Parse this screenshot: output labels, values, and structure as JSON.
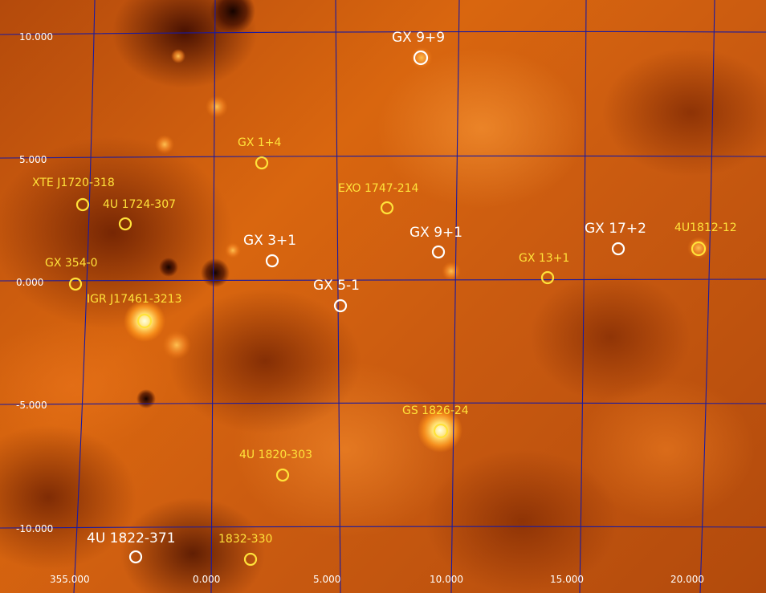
{
  "map": {
    "y_axis_labels": [
      "10.000",
      "5.000",
      "0.000",
      "-5.000",
      "-10.000"
    ],
    "x_axis_labels": [
      "355.000",
      "0.000",
      "5.000",
      "10.000",
      "15.000",
      "20.000"
    ],
    "grid_color": "#1a1aa0",
    "colors": {
      "circle_yellow": "#ffe23a",
      "circle_white": "#ffffff",
      "label_yellow": "#ffe23a",
      "label_white": "#ffffff"
    }
  },
  "sources": [
    {
      "name": "GX 9+9",
      "style": "white"
    },
    {
      "name": "GX 1+4",
      "style": "yellow"
    },
    {
      "name": "XTE J1720-318",
      "style": "yellow"
    },
    {
      "name": "4U 1724-307",
      "style": "yellow"
    },
    {
      "name": "EXO 1747-214",
      "style": "yellow"
    },
    {
      "name": "GX 3+1",
      "style": "white"
    },
    {
      "name": "GX 9+1",
      "style": "white"
    },
    {
      "name": "GX 17+2",
      "style": "white"
    },
    {
      "name": "4U1812-12",
      "style": "yellow"
    },
    {
      "name": "GX 13+1",
      "style": "yellow"
    },
    {
      "name": "GX 354-0",
      "style": "yellow"
    },
    {
      "name": "GX 5-1",
      "style": "white"
    },
    {
      "name": "IGR J17461-3213",
      "style": "yellow"
    },
    {
      "name": "GS 1826-24",
      "style": "yellow"
    },
    {
      "name": "4U 1820-303",
      "style": "yellow"
    },
    {
      "name": "4U 1822-371",
      "style": "white"
    },
    {
      "name": "1832-330",
      "style": "yellow"
    }
  ]
}
